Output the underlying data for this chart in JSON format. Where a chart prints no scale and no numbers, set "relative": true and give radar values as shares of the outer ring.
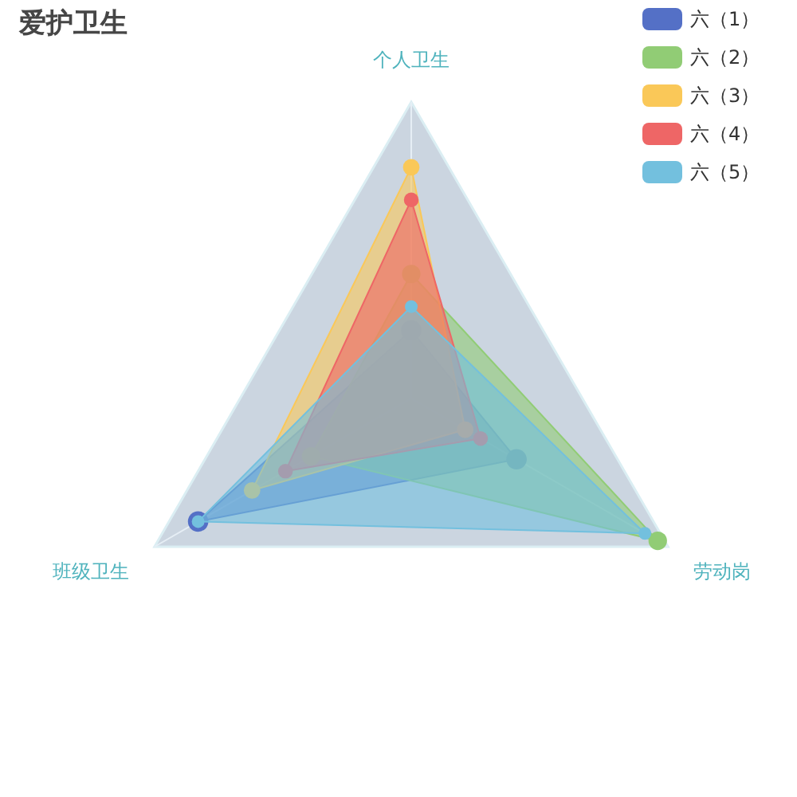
{
  "chart_data": {
    "type": "radar",
    "title": "爱护卫生",
    "relative": true,
    "categories": [
      "个人卫生",
      "劳动岗",
      "班级卫生"
    ],
    "legend": "top right",
    "marker": "circle",
    "series": [
      {
        "name": "六（1）",
        "color": "#5470c6",
        "values": [
          0.23,
          0.41,
          0.83
        ]
      },
      {
        "name": "六（2）",
        "color": "#91cc75",
        "values": [
          0.42,
          0.96,
          0.39
        ]
      },
      {
        "name": "六（3）",
        "color": "#fac858",
        "values": [
          0.78,
          0.21,
          0.62
        ]
      },
      {
        "name": "六（4）",
        "color": "#ee6666",
        "values": [
          0.67,
          0.27,
          0.49
        ]
      },
      {
        "name": "六（5）",
        "color": "#73c0de",
        "values": [
          0.31,
          0.91,
          0.83
        ]
      }
    ]
  }
}
